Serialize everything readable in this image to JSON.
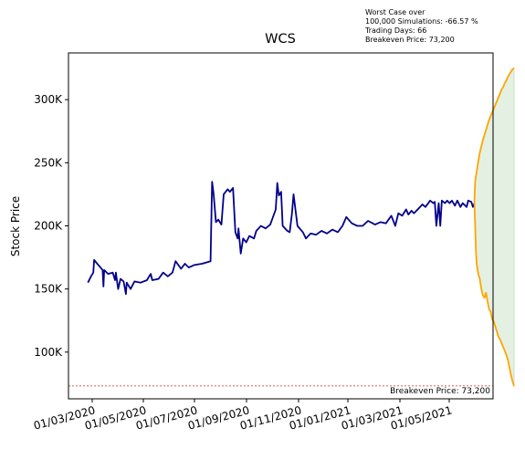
{
  "chart_data": {
    "type": "line",
    "title": "WCS",
    "ylabel": "Stock Price",
    "xlabel": "",
    "annotation_lines": [
      "Worst Case over",
      "100,000 Simulations: -66.57 %",
      "Trading Days: 66",
      "Breakeven Price: 73,200"
    ],
    "breakeven": {
      "value": 73200,
      "label": "Breakeven Price: 73,200",
      "color": "#d62728"
    },
    "ylim": [
      63000,
      337000
    ],
    "xlim": [
      "2019-12-08",
      "2021-06-07"
    ],
    "y_ticks": [
      {
        "value": 100000,
        "label": "100K"
      },
      {
        "value": 150000,
        "label": "150K"
      },
      {
        "value": 200000,
        "label": "200K"
      },
      {
        "value": 250000,
        "label": "250K"
      },
      {
        "value": 300000,
        "label": "300K"
      }
    ],
    "x_ticks": [
      {
        "date": "2020-01-03",
        "label": "01/03/2020"
      },
      {
        "date": "2020-01-05",
        "label": "01/05/2020"
      },
      {
        "date": "2020-01-07",
        "label": "01/07/2020"
      },
      {
        "date": "2020-01-09",
        "label": "01/09/2020"
      },
      {
        "date": "2020-01-11",
        "label": "01/11/2020"
      },
      {
        "date": "2021-01-01",
        "label": "01/01/2021"
      },
      {
        "date": "2021-01-03",
        "label": "01/03/2021"
      },
      {
        "date": "2021-01-05",
        "label": "01/05/2021"
      }
    ],
    "series": [
      {
        "role": "historical",
        "color": "#00008b",
        "points": [
          [
            "2020-01-02",
            155000
          ],
          [
            "2020-01-06",
            160000
          ],
          [
            "2020-01-09",
            163000
          ],
          [
            "2020-01-10",
            173000
          ],
          [
            "2020-01-14",
            170000
          ],
          [
            "2020-01-17",
            168000
          ],
          [
            "2020-01-21",
            165000
          ],
          [
            "2020-01-22",
            152000
          ],
          [
            "2020-01-23",
            165000
          ],
          [
            "2020-01-28",
            162000
          ],
          [
            "2020-02-03",
            163000
          ],
          [
            "2020-02-06",
            157000
          ],
          [
            "2020-02-07",
            163000
          ],
          [
            "2020-02-10",
            150000
          ],
          [
            "2020-02-13",
            158000
          ],
          [
            "2020-02-17",
            156000
          ],
          [
            "2020-02-20",
            146000
          ],
          [
            "2020-02-21",
            155000
          ],
          [
            "2020-02-26",
            150000
          ],
          [
            "2020-03-02",
            156000
          ],
          [
            "2020-03-10",
            155000
          ],
          [
            "2020-03-18",
            157000
          ],
          [
            "2020-03-23",
            162000
          ],
          [
            "2020-03-25",
            157000
          ],
          [
            "2020-04-02",
            158000
          ],
          [
            "2020-04-08",
            163000
          ],
          [
            "2020-04-14",
            160000
          ],
          [
            "2020-04-20",
            163000
          ],
          [
            "2020-04-24",
            172000
          ],
          [
            "2020-05-01",
            166000
          ],
          [
            "2020-05-06",
            170000
          ],
          [
            "2020-05-11",
            167000
          ],
          [
            "2020-05-18",
            169000
          ],
          [
            "2020-05-28",
            170000
          ],
          [
            "2020-06-08",
            172000
          ],
          [
            "2020-06-10",
            235000
          ],
          [
            "2020-06-12",
            225000
          ],
          [
            "2020-06-15",
            203000
          ],
          [
            "2020-06-18",
            205000
          ],
          [
            "2020-06-22",
            201000
          ],
          [
            "2020-06-25",
            225000
          ],
          [
            "2020-06-30",
            229000
          ],
          [
            "2020-07-03",
            227000
          ],
          [
            "2020-07-07",
            230000
          ],
          [
            "2020-07-10",
            195000
          ],
          [
            "2020-07-13",
            190000
          ],
          [
            "2020-07-14",
            198000
          ],
          [
            "2020-07-17",
            178000
          ],
          [
            "2020-07-20",
            190000
          ],
          [
            "2020-07-24",
            187000
          ],
          [
            "2020-07-28",
            192000
          ],
          [
            "2020-08-03",
            190000
          ],
          [
            "2020-08-06",
            196000
          ],
          [
            "2020-08-12",
            200000
          ],
          [
            "2020-08-18",
            198000
          ],
          [
            "2020-08-24",
            201000
          ],
          [
            "2020-08-31",
            213000
          ],
          [
            "2020-09-02",
            234000
          ],
          [
            "2020-09-04",
            224000
          ],
          [
            "2020-09-07",
            227000
          ],
          [
            "2020-09-09",
            200000
          ],
          [
            "2020-09-15",
            196000
          ],
          [
            "2020-09-18",
            195000
          ],
          [
            "2020-09-21",
            210000
          ],
          [
            "2020-09-23",
            225000
          ],
          [
            "2020-09-28",
            200000
          ],
          [
            "2020-10-05",
            195000
          ],
          [
            "2020-10-09",
            190000
          ],
          [
            "2020-10-15",
            194000
          ],
          [
            "2020-10-22",
            193000
          ],
          [
            "2020-10-29",
            196000
          ],
          [
            "2020-11-05",
            194000
          ],
          [
            "2020-11-12",
            197000
          ],
          [
            "2020-11-19",
            195000
          ],
          [
            "2020-11-25",
            200000
          ],
          [
            "2020-11-30",
            207000
          ],
          [
            "2020-12-07",
            202000
          ],
          [
            "2020-12-14",
            200000
          ],
          [
            "2020-12-21",
            200000
          ],
          [
            "2020-12-28",
            204000
          ],
          [
            "2021-01-06",
            201000
          ],
          [
            "2021-01-13",
            203000
          ],
          [
            "2021-01-20",
            202000
          ],
          [
            "2021-01-27",
            208000
          ],
          [
            "2021-02-01",
            200000
          ],
          [
            "2021-02-05",
            210000
          ],
          [
            "2021-02-10",
            208000
          ],
          [
            "2021-02-15",
            213000
          ],
          [
            "2021-02-18",
            209000
          ],
          [
            "2021-02-22",
            212000
          ],
          [
            "2021-02-25",
            210000
          ],
          [
            "2021-03-02",
            213000
          ],
          [
            "2021-03-08",
            217000
          ],
          [
            "2021-03-12",
            215000
          ],
          [
            "2021-03-18",
            220000
          ],
          [
            "2021-03-22",
            218000
          ],
          [
            "2021-03-24",
            219000
          ],
          [
            "2021-03-26",
            200000
          ],
          [
            "2021-03-29",
            218000
          ],
          [
            "2021-03-31",
            200000
          ],
          [
            "2021-04-02",
            220000
          ],
          [
            "2021-04-06",
            218000
          ],
          [
            "2021-04-09",
            220000
          ],
          [
            "2021-04-12",
            218000
          ],
          [
            "2021-04-15",
            220000
          ],
          [
            "2021-04-19",
            216000
          ],
          [
            "2021-04-22",
            220000
          ],
          [
            "2021-04-26",
            215000
          ],
          [
            "2021-04-29",
            218000
          ],
          [
            "2021-05-04",
            215000
          ],
          [
            "2021-05-06",
            220000
          ],
          [
            "2021-05-10",
            219000
          ],
          [
            "2021-05-12",
            215000
          ],
          [
            "2021-05-14",
            218000
          ]
        ]
      },
      {
        "role": "upper-bound",
        "color": "#ffa500",
        "points": [
          [
            "2021-05-14",
            219000
          ],
          [
            "2021-05-15",
            235000
          ],
          [
            "2021-05-17",
            243000
          ],
          [
            "2021-05-19",
            251000
          ],
          [
            "2021-05-21",
            258000
          ],
          [
            "2021-05-23",
            263000
          ],
          [
            "2021-05-25",
            268000
          ],
          [
            "2021-05-27",
            272000
          ],
          [
            "2021-05-29",
            276000
          ],
          [
            "2021-05-31",
            280000
          ],
          [
            "2021-06-02",
            284000
          ],
          [
            "2021-06-04",
            287000
          ],
          [
            "2021-06-06",
            290000
          ],
          [
            "2021-06-08",
            293000
          ],
          [
            "2021-06-10",
            296000
          ],
          [
            "2021-06-12",
            299000
          ],
          [
            "2021-06-14",
            302000
          ],
          [
            "2021-06-16",
            305000
          ],
          [
            "2021-06-18",
            308000
          ],
          [
            "2021-06-20",
            310000
          ],
          [
            "2021-06-22",
            313000
          ],
          [
            "2021-06-24",
            315000
          ],
          [
            "2021-06-26",
            318000
          ],
          [
            "2021-06-28",
            320000
          ],
          [
            "2021-06-30",
            322000
          ],
          [
            "2021-07-02",
            324000
          ],
          [
            "2021-07-04",
            325000
          ]
        ]
      },
      {
        "role": "lower-bound",
        "color": "#ffa500",
        "points": [
          [
            "2021-05-14",
            219000
          ],
          [
            "2021-05-15",
            200000
          ],
          [
            "2021-05-16",
            180000
          ],
          [
            "2021-05-17",
            170000
          ],
          [
            "2021-05-19",
            162000
          ],
          [
            "2021-05-21",
            158000
          ],
          [
            "2021-05-23",
            150000
          ],
          [
            "2021-05-25",
            145000
          ],
          [
            "2021-05-27",
            143000
          ],
          [
            "2021-05-29",
            147000
          ],
          [
            "2021-05-31",
            140000
          ],
          [
            "2021-06-02",
            134000
          ],
          [
            "2021-06-04",
            132000
          ],
          [
            "2021-06-06",
            126000
          ],
          [
            "2021-06-08",
            124000
          ],
          [
            "2021-06-10",
            120000
          ],
          [
            "2021-06-12",
            116000
          ],
          [
            "2021-06-14",
            112000
          ],
          [
            "2021-06-16",
            110000
          ],
          [
            "2021-06-18",
            107000
          ],
          [
            "2021-06-20",
            104000
          ],
          [
            "2021-06-22",
            101000
          ],
          [
            "2021-06-24",
            98000
          ],
          [
            "2021-06-26",
            94000
          ],
          [
            "2021-06-28",
            88000
          ],
          [
            "2021-06-30",
            82000
          ],
          [
            "2021-07-02",
            77000
          ],
          [
            "2021-07-04",
            73000
          ]
        ]
      }
    ],
    "band_fill": "#e4f1e2",
    "band_edge": "#c8dfc4"
  }
}
